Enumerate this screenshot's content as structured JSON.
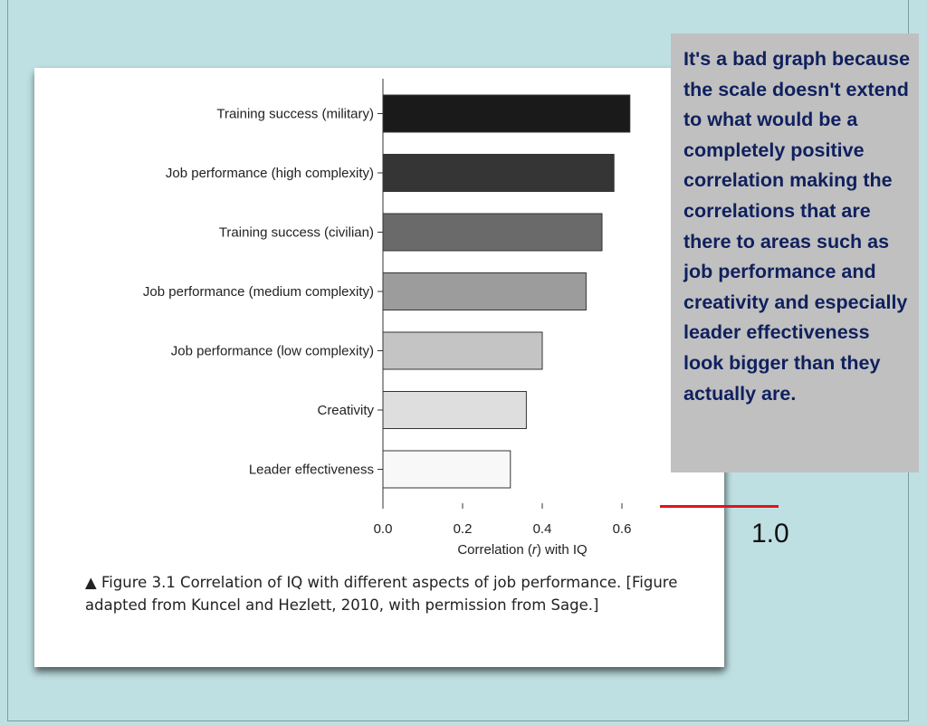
{
  "chart_data": {
    "type": "bar",
    "orientation": "horizontal",
    "categories": [
      "Training success (military)",
      "Job performance (high complexity)",
      "Training success (civilian)",
      "Job performance (medium complexity)",
      "Job performance (low complexity)",
      "Creativity",
      "Leader effectiveness"
    ],
    "values": [
      0.62,
      0.58,
      0.55,
      0.51,
      0.4,
      0.36,
      0.32
    ],
    "bar_colors": [
      "#1a1a1a",
      "#353535",
      "#6a6a6a",
      "#9c9c9c",
      "#c4c4c4",
      "#dedede",
      "#f8f8f8"
    ],
    "xticks": [
      "0.0",
      "0.2",
      "0.4",
      "0.6"
    ],
    "xlim": [
      0,
      0.7
    ],
    "xlabel_before": "Correlation (",
    "xlabel_italic": "r",
    "xlabel_after": ") with IQ",
    "grid": false,
    "legend": "none"
  },
  "caption": {
    "marker": "▲",
    "text": "Figure 3.1  Correlation of IQ with different aspects of job performance. [Figure adapted from Kuncel and Hezlett, 2010, with permission from Sage.]"
  },
  "note": {
    "text": "It's a bad graph because the scale doesn't extend to what would be a completely positive correlation making the correlations that are there to areas such as job performance and creativity and especially leader effectiveness look bigger than they actually are."
  },
  "annotation": {
    "scale_label": "1.0",
    "line_color": "#e0141c"
  }
}
